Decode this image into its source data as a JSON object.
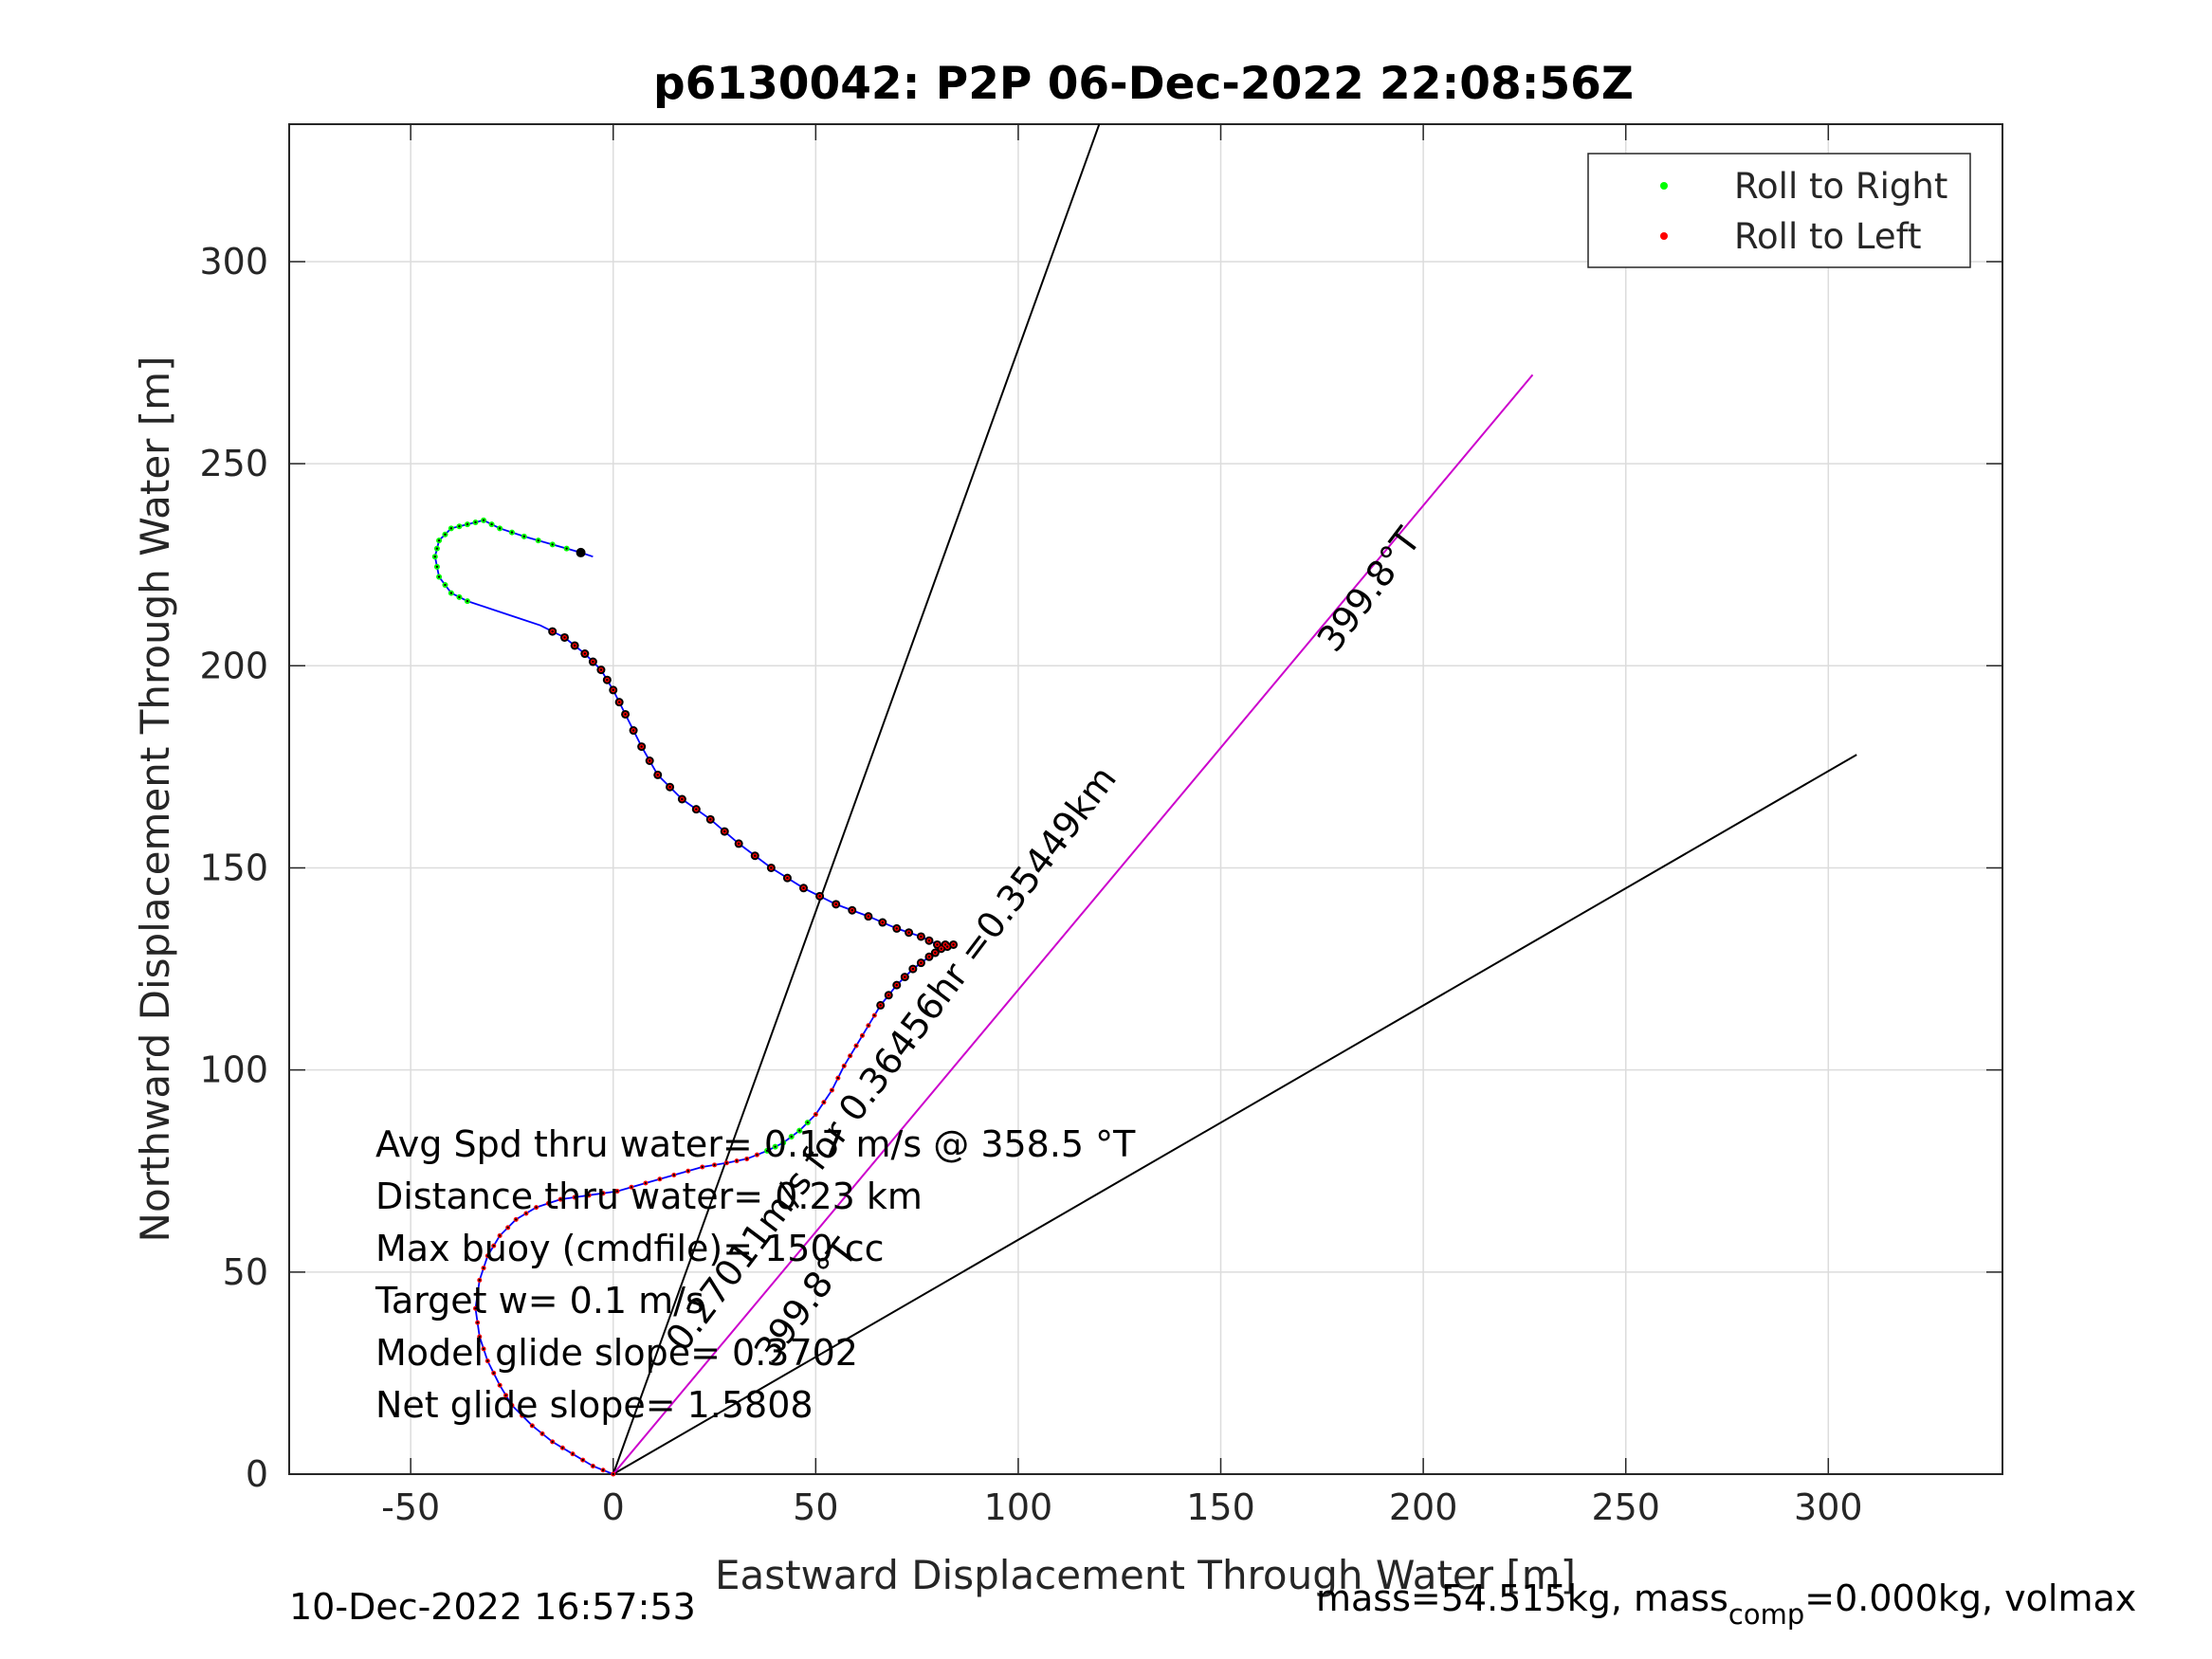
{
  "chart_data": {
    "type": "scatter",
    "title": "p6130042: P2P 06-Dec-2022 22:08:56Z",
    "xlabel": "Eastward Displacement Through Water [m]",
    "ylabel": "Northward Displacement Through Water [m]",
    "xlim": [
      -80,
      343
    ],
    "ylim": [
      0,
      334
    ],
    "xticks": [
      -50,
      0,
      50,
      100,
      150,
      200,
      250,
      300
    ],
    "yticks": [
      0,
      50,
      100,
      150,
      200,
      250,
      300
    ],
    "grid": true,
    "legend_position": "top-right",
    "legend": [
      {
        "label": "Roll to Right",
        "color": "#00ff00"
      },
      {
        "label": "Roll to Left",
        "color": "#ff0000"
      }
    ],
    "track": {
      "color": "#0000ff",
      "points": [
        [
          0,
          0
        ],
        [
          -5,
          2
        ],
        [
          -10,
          5
        ],
        [
          -15,
          8
        ],
        [
          -20,
          12
        ],
        [
          -25,
          17
        ],
        [
          -28,
          22
        ],
        [
          -31,
          28
        ],
        [
          -33,
          34
        ],
        [
          -34,
          41
        ],
        [
          -33,
          48
        ],
        [
          -31,
          54
        ],
        [
          -28,
          59
        ],
        [
          -24,
          63
        ],
        [
          -19,
          66
        ],
        [
          -13,
          68
        ],
        [
          -6,
          69
        ],
        [
          1,
          70
        ],
        [
          8,
          72
        ],
        [
          15,
          74
        ],
        [
          22,
          76
        ],
        [
          28,
          77
        ],
        [
          33,
          78
        ],
        [
          38,
          80
        ],
        [
          42,
          82
        ],
        [
          46,
          85
        ],
        [
          50,
          89
        ],
        [
          54,
          95
        ],
        [
          57,
          101
        ],
        [
          60,
          106
        ],
        [
          63,
          111
        ],
        [
          66,
          116
        ],
        [
          70,
          121
        ],
        [
          74,
          125
        ],
        [
          78,
          128
        ],
        [
          81,
          130
        ],
        [
          84,
          131
        ],
        [
          80,
          131
        ],
        [
          76,
          133
        ],
        [
          70,
          135
        ],
        [
          63,
          138
        ],
        [
          55,
          141
        ],
        [
          47,
          145
        ],
        [
          39,
          150
        ],
        [
          31,
          156
        ],
        [
          24,
          162
        ],
        [
          17,
          167
        ],
        [
          11,
          173
        ],
        [
          7,
          180
        ],
        [
          3,
          188
        ],
        [
          0,
          194
        ],
        [
          -3,
          199
        ],
        [
          -7,
          203
        ],
        [
          -12,
          207
        ],
        [
          -18,
          210
        ],
        [
          -24,
          212
        ],
        [
          -30,
          214
        ],
        [
          -36,
          216
        ],
        [
          -40,
          218
        ],
        [
          -43,
          222
        ],
        [
          -44,
          227
        ],
        [
          -43,
          231
        ],
        [
          -40,
          234
        ],
        [
          -36,
          235
        ],
        [
          -32,
          236
        ],
        [
          -28,
          234
        ],
        [
          -22,
          232
        ],
        [
          -15,
          230
        ],
        [
          -8,
          228
        ],
        [
          -5,
          227
        ]
      ]
    },
    "left_roll_segments": [
      [
        0,
        23
      ],
      [
        26,
        54
      ]
    ],
    "right_roll_segments": [
      [
        23,
        26
      ],
      [
        57,
        68
      ]
    ],
    "black_point_ranges": [
      [
        31,
        54
      ],
      [
        68,
        68
      ]
    ],
    "heading_lines": [
      {
        "from": [
          0,
          0
        ],
        "to": [
          120,
          334
        ],
        "color": "#000000"
      },
      {
        "from": [
          0,
          0
        ],
        "to": [
          307,
          178
        ],
        "color": "#000000"
      },
      {
        "from": [
          0,
          0
        ],
        "to": [
          227,
          272
        ],
        "color": "#cc00cc"
      }
    ],
    "line_labels": [
      {
        "text": "399.8°T",
        "at": [
          189,
          217
        ],
        "angle": -53
      },
      {
        "text": "0.27011m/s for 0.36456hr =0.35449km",
        "at": [
          71,
          101
        ],
        "angle": -53
      },
      {
        "text": "399.8°T",
        "at": [
          50,
          41
        ],
        "angle": -53
      }
    ],
    "annotations": [
      "Avg Spd thru water=  0.17 m/s @ 358.5 °T",
      "Distance thru water=  0.23 km",
      "Max buoy (cmdfile)= 150 cc",
      "Target w= 0.1 m/s",
      "Model glide slope= 0.3702",
      "Net glide slope= 1.5808"
    ]
  },
  "footer": {
    "timestamp": "10-Dec-2022 16:57:53",
    "mass_text": "mass=54.515kg, mass",
    "mass_sub": "comp",
    "mass_tail": "=0.000kg, volmax"
  }
}
